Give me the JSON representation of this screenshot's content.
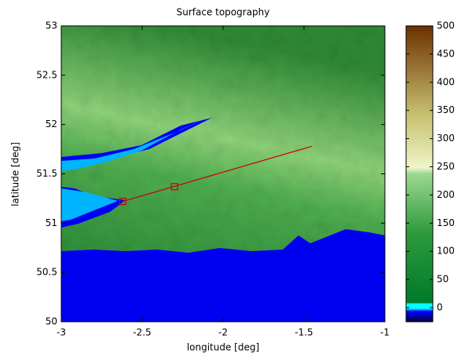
{
  "chart_data": {
    "type": "image",
    "title": "Surface topography",
    "x_label": "longitude [deg]",
    "y_label": "latitude [deg]",
    "xlim": [
      -3,
      -1
    ],
    "xticks": [
      -3,
      -2.5,
      -2,
      -1.5,
      -1
    ],
    "ylim": [
      50,
      53
    ],
    "yticks": [
      50,
      50.5,
      51,
      51.5,
      52,
      52.5,
      53
    ],
    "clim": [
      -25,
      500
    ],
    "cticks": [
      0,
      50,
      100,
      150,
      200,
      250,
      300,
      350,
      400,
      450,
      500
    ],
    "lines": [
      {
        "color": "#cc0000",
        "x": [
          -2.62,
          -1.45
        ],
        "y": [
          51.22,
          51.78
        ]
      }
    ],
    "markers": {
      "color": "#cc0000",
      "x": [
        -2.62,
        -2.3
      ],
      "y": [
        51.22,
        51.37
      ]
    }
  }
}
